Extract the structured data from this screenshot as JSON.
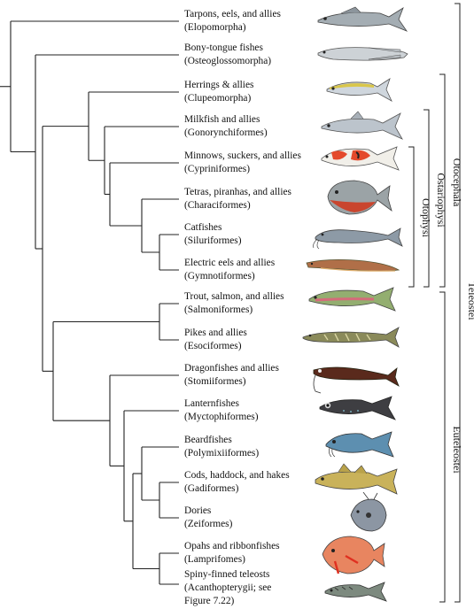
{
  "taxa": [
    {
      "common": "Tarpons, eels, and allies",
      "group": "(Elopomorpha)"
    },
    {
      "common": "Bony-tongue fishes",
      "group": "(Osteoglossomorpha)"
    },
    {
      "common": "Herrings & allies",
      "group": "(Clupeomorpha)"
    },
    {
      "common": "Milkfish and allies",
      "group": "(Gonorynchiformes)"
    },
    {
      "common": "Minnows, suckers, and allies",
      "group": "(Cypriniformes)"
    },
    {
      "common": "Tetras, piranhas, and allies",
      "group": "(Characiformes)"
    },
    {
      "common": "Catfishes",
      "group": "(Siluriformes)"
    },
    {
      "common": "Electric eels and allies",
      "group": "(Gymnotiformes)"
    },
    {
      "common": "Trout, salmon, and allies",
      "group": "(Salmoniformes)"
    },
    {
      "common": "Pikes and allies",
      "group": "(Esociformes)"
    },
    {
      "common": "Dragonfishes and allies",
      "group": "(Stomiiformes)"
    },
    {
      "common": "Lanternfishes",
      "group": "(Myctophiformes)"
    },
    {
      "common": "Beardfishes",
      "group": "(Polymixiiformes)"
    },
    {
      "common": "Cods, haddock, and hakes",
      "group": "(Gadiformes)"
    },
    {
      "common": "Dories",
      "group": "(Zeiformes)"
    },
    {
      "common": "Opahs and ribbonfishes",
      "group": "(Lamprifomes)"
    },
    {
      "common": "Spiny-finned teleosts",
      "group": "(Acanthopterygii; see",
      "group2": "Figure 7.22)"
    }
  ],
  "clades": {
    "otophysi": "Otophysi",
    "ostariophysi": "Ostariophysi",
    "otocephala": "Otocephala",
    "euteleostei": "Euteleostei",
    "teleostei": "Teleostei"
  },
  "fish_icons": [
    {
      "name": "tarpon-icon",
      "color": "#9aa3a8"
    },
    {
      "name": "arowana-icon",
      "color": "#c7ccd0"
    },
    {
      "name": "herring-icon",
      "color": "#d9c64a"
    },
    {
      "name": "milkfish-icon",
      "color": "#b9c1c9"
    },
    {
      "name": "koi-icon",
      "color": "#e44a2c"
    },
    {
      "name": "piranha-icon",
      "color": "#c9452e"
    },
    {
      "name": "catfish-icon",
      "color": "#8d9aa6"
    },
    {
      "name": "electric-eel-icon",
      "color": "#a0603c"
    },
    {
      "name": "trout-icon",
      "color": "#8fae6a"
    },
    {
      "name": "pike-icon",
      "color": "#8a8a5a"
    },
    {
      "name": "dragonfish-icon",
      "color": "#5a2a1c"
    },
    {
      "name": "lanternfish-icon",
      "color": "#3a3a3a"
    },
    {
      "name": "beardfish-icon",
      "color": "#5d8fb0"
    },
    {
      "name": "cod-icon",
      "color": "#c9b25a"
    },
    {
      "name": "dory-icon",
      "color": "#8c96a3"
    },
    {
      "name": "opah-icon",
      "color": "#e05a3a"
    },
    {
      "name": "mackerel-icon",
      "color": "#7d8a7f"
    }
  ],
  "colors": {
    "line": "#222222",
    "text": "#111111",
    "background": "#ffffff"
  }
}
